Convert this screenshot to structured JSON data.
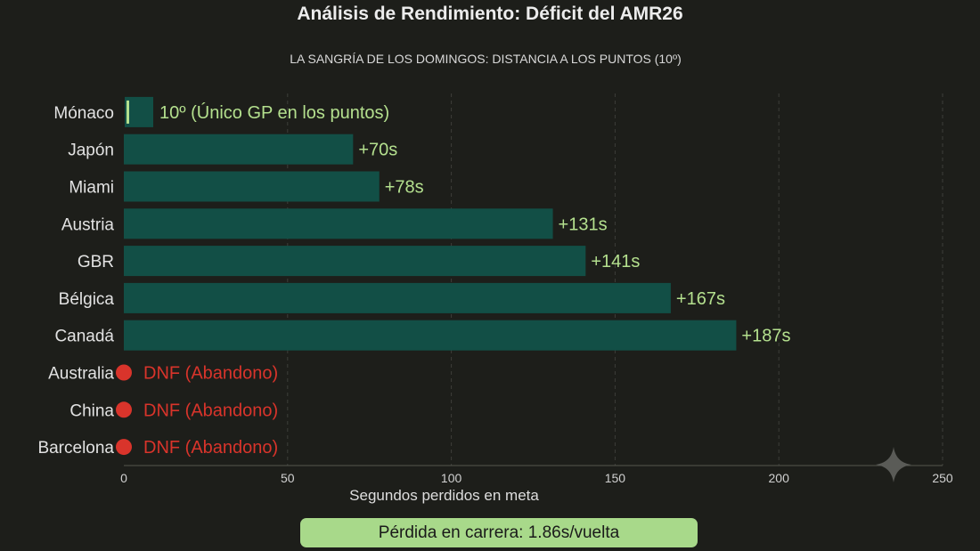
{
  "header": {
    "title": "Análisis de Rendimiento: Déficit del AMR26",
    "subtitle": "LA SANGRÍA DE LOS DOMINGOS: DISTANCIA A LOS PUNTOS (10º)"
  },
  "footer": {
    "badge_text": "Pérdida en carrera: 1.86s/vuelta"
  },
  "colors": {
    "bar": "#124f46",
    "bar_label": "#b4e08e",
    "dnf": "#d9342b",
    "points_marker": "#b4e08e",
    "badge_bg": "#a8d98a",
    "background": "#1d1e1a"
  },
  "icons": {
    "watermark": "sparkle-icon"
  },
  "chart_data": {
    "type": "bar",
    "orientation": "horizontal",
    "xlabel": "Segundos perdidos en meta",
    "ylabel": "",
    "xlim": [
      0,
      250
    ],
    "xticks": [
      0,
      50,
      100,
      150,
      200,
      250
    ],
    "grid": "vertical dashed",
    "categories": [
      "Mónaco",
      "Japón",
      "Miami",
      "Austria",
      "GBR",
      "Bélgica",
      "Canadá",
      "Australia",
      "China",
      "Barcelona"
    ],
    "values": [
      0,
      70,
      78,
      131,
      141,
      167,
      187,
      null,
      null,
      null
    ],
    "labels": [
      "10º (Único GP en los puntos)",
      "+70s",
      "+78s",
      "+131s",
      "+141s",
      "+167s",
      "+187s",
      "DNF (Abandono)",
      "DNF (Abandono)",
      "DNF (Abandono)"
    ],
    "status": [
      "points",
      "gap",
      "gap",
      "gap",
      "gap",
      "gap",
      "gap",
      "dnf",
      "dnf",
      "dnf"
    ]
  }
}
